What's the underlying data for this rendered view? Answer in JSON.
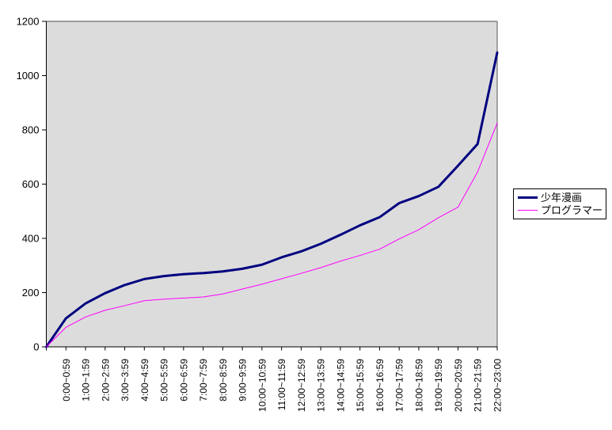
{
  "chart_data": {
    "type": "line",
    "title": "",
    "xlabel": "",
    "ylabel": "",
    "categories": [
      "",
      "0:00~0:59",
      "1:00~1:59",
      "2:00~2:59",
      "3:00~3:59",
      "4:00~4:59",
      "5:00~5:59",
      "6:00~6:59",
      "7:00~7:59",
      "8:00~8:59",
      "9:00~9:59",
      "10:00~10:59",
      "11:00~11:59",
      "12:00~12:59",
      "13:00~13:59",
      "14:00~14:59",
      "15:00~15:59",
      "16:00~16:59",
      "17:00~17:59",
      "18:00~18:59",
      "19:00~19:59",
      "20:00~20:59",
      "21:00~21:59",
      "22:00~23:00"
    ],
    "series": [
      {
        "name": "少年漫画",
        "color": "#000080",
        "stroke_width": 3,
        "values": [
          0,
          105,
          160,
          198,
          228,
          250,
          261,
          268,
          272,
          278,
          288,
          303,
          330,
          352,
          380,
          413,
          448,
          478,
          530,
          556,
          590,
          668,
          748,
          1085
        ]
      },
      {
        "name": "プログラマー",
        "color": "#FF00FF",
        "stroke_width": 1,
        "values": [
          0,
          72,
          110,
          135,
          152,
          170,
          176,
          180,
          184,
          195,
          213,
          231,
          251,
          271,
          292,
          316,
          337,
          360,
          398,
          432,
          476,
          515,
          645,
          825
        ]
      }
    ],
    "ylim": [
      0,
      1200
    ],
    "y_ticks": [
      0,
      200,
      400,
      600,
      800,
      1000,
      1200
    ],
    "grid": false,
    "legend_position": "right",
    "plot_bg": "#DCDCDC",
    "axis_color": "#000000",
    "plot_border_color": "#808080"
  }
}
